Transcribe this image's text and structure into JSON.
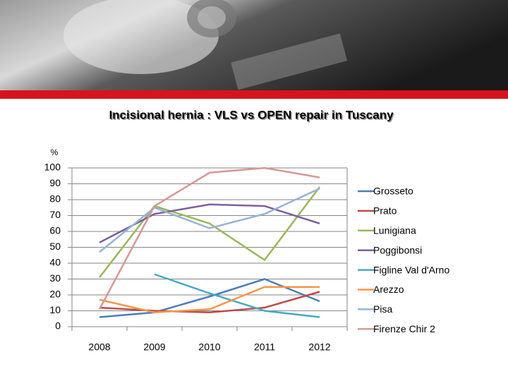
{
  "chart_data": {
    "type": "line",
    "title": "Incisional hernia : VLS vs OPEN repair in Tuscany",
    "y_label": "%",
    "categories": [
      "2008",
      "2009",
      "2010",
      "2011",
      "2012"
    ],
    "series": [
      {
        "name": "Grosseto",
        "color": "#4a7ebb",
        "values": [
          6,
          9,
          19,
          30,
          16
        ]
      },
      {
        "name": "Prato",
        "color": "#be4b48",
        "values": [
          12,
          10,
          9,
          12,
          22
        ]
      },
      {
        "name": "Lunigiana",
        "color": "#98b954",
        "values": [
          31,
          76,
          65,
          42,
          88
        ]
      },
      {
        "name": "Poggibonsi",
        "color": "#7d60a0",
        "values": [
          53,
          71,
          77,
          76,
          65
        ]
      },
      {
        "name": "Figline Val d'Arno",
        "color": "#46aac5",
        "values": [
          null,
          33,
          21,
          10,
          6
        ]
      },
      {
        "name": "Arezzo",
        "color": "#f79646",
        "values": [
          17,
          9,
          11,
          25,
          25
        ]
      },
      {
        "name": "Pisa",
        "color": "#95b3d7",
        "values": [
          47,
          75,
          62,
          71,
          87
        ]
      },
      {
        "name": "Firenze Chir 2",
        "color": "#d99694",
        "values": [
          11,
          76,
          97,
          100,
          94
        ]
      }
    ],
    "ylim": [
      0,
      100
    ],
    "yticks": [
      0,
      10,
      20,
      30,
      40,
      50,
      60,
      70,
      80,
      90,
      100
    ],
    "grid": true,
    "legend": "right"
  }
}
